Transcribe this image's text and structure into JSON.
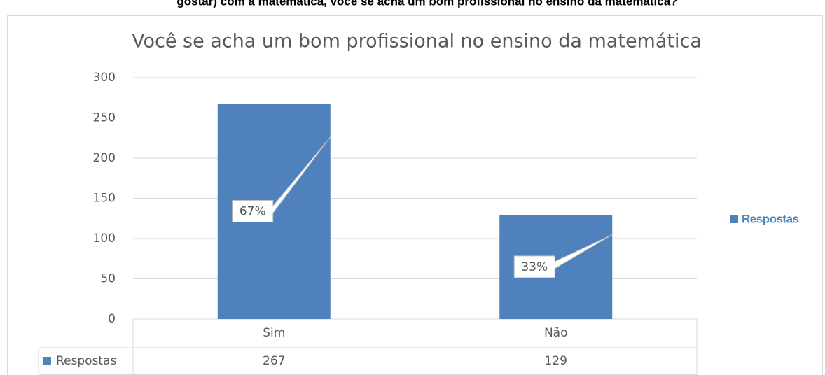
{
  "caption": "gostar) com a matemática, você se acha um bom profissional no ensino da matemática?",
  "chart_data": {
    "type": "bar",
    "title": "Você se acha um bom profissional no ensino da matemática",
    "categories": [
      "Sim",
      "Não"
    ],
    "series": [
      {
        "name": "Respostas",
        "color": "#4f81bd",
        "values": [
          267,
          129
        ]
      }
    ],
    "data_labels": [
      "67%",
      "33%"
    ],
    "ylim": [
      0,
      300
    ],
    "yticks": [
      0,
      50,
      100,
      150,
      200,
      250,
      300
    ],
    "grid": true,
    "legend": "right",
    "data_table": true
  }
}
